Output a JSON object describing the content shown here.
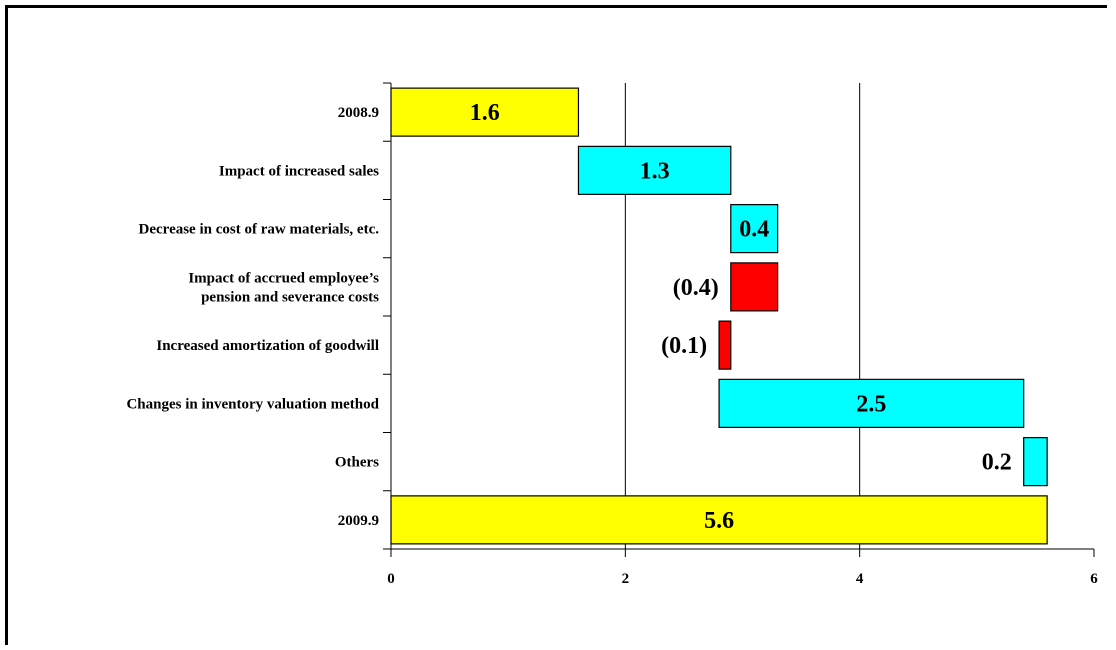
{
  "chart_data": {
    "type": "bar",
    "subtype": "waterfall-horizontal",
    "title": "",
    "xlabel": "",
    "ylabel": "",
    "xlim": [
      0,
      6
    ],
    "xticks": [
      "0",
      "2",
      "4",
      "6"
    ],
    "grid": "vertical",
    "bars": [
      {
        "lines": [
          "2008.9"
        ],
        "start": 0,
        "end": 1.6,
        "label": "1.6",
        "color": "#FFFF00",
        "label_pos": "inside"
      },
      {
        "lines": [
          "Impact of increased sales"
        ],
        "start": 1.6,
        "end": 2.9,
        "label": "1.3",
        "color": "#00FFFF",
        "label_pos": "inside"
      },
      {
        "lines": [
          "Decrease in cost of raw materials, etc."
        ],
        "start": 2.9,
        "end": 3.3,
        "label": "0.4",
        "color": "#00FFFF",
        "label_pos": "inside"
      },
      {
        "lines": [
          "Impact of accrued employee’s",
          "pension and severance costs"
        ],
        "start": 2.9,
        "end": 3.3,
        "label": "(0.4)",
        "color": "#FF0000",
        "label_pos": "left"
      },
      {
        "lines": [
          "Increased amortization of goodwill"
        ],
        "start": 2.8,
        "end": 2.9,
        "label": "(0.1)",
        "color": "#FF0000",
        "label_pos": "left"
      },
      {
        "lines": [
          "Changes in inventory valuation method"
        ],
        "start": 2.8,
        "end": 5.4,
        "label": "2.5",
        "color": "#00FFFF",
        "label_pos": "inside"
      },
      {
        "lines": [
          "Others"
        ],
        "start": 5.4,
        "end": 5.6,
        "label": "0.2",
        "color": "#00FFFF",
        "label_pos": "left"
      },
      {
        "lines": [
          "2009.9"
        ],
        "start": 0,
        "end": 5.6,
        "label": "5.6",
        "color": "#FFFF00",
        "label_pos": "inside"
      }
    ]
  }
}
